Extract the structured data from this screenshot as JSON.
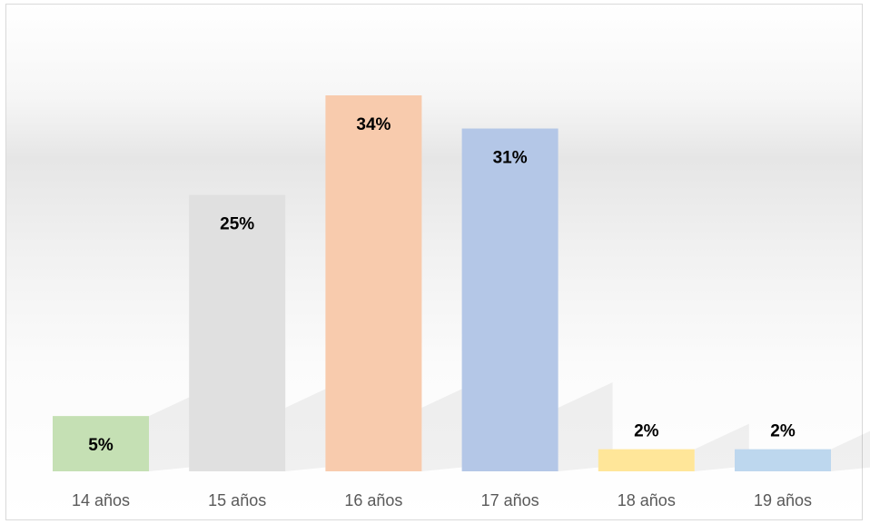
{
  "chart_data": {
    "type": "bar",
    "categories": [
      "14 años",
      "15 años",
      "16 años",
      "17 años",
      "18 años",
      "19 años"
    ],
    "values": [
      5,
      25,
      34,
      31,
      2,
      2
    ],
    "value_labels": [
      "5%",
      "25%",
      "34%",
      "31%",
      "2%",
      "2%"
    ],
    "colors": [
      "#c5e0b4",
      "#e0e0e0",
      "#f8cbad",
      "#b4c7e7",
      "#ffe699",
      "#bdd7ee"
    ],
    "title": "",
    "xlabel": "",
    "ylabel": "",
    "ylim": [
      0,
      34
    ],
    "grid": false,
    "legend": "none"
  }
}
